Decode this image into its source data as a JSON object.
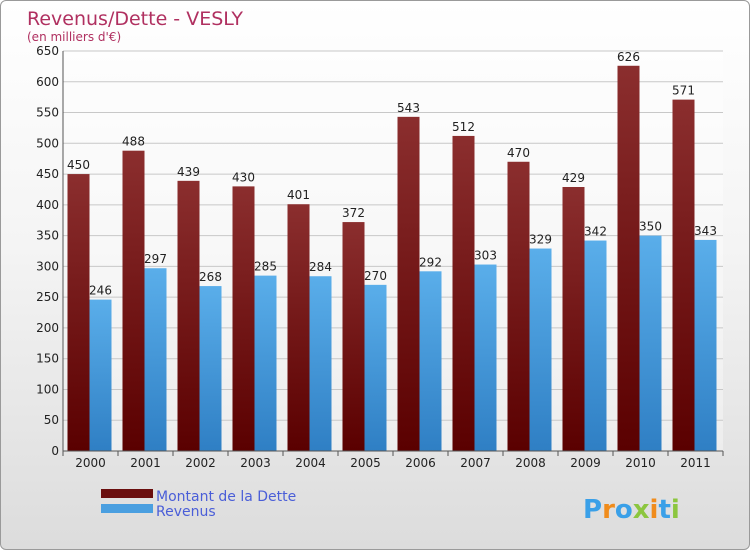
{
  "chart_data": {
    "type": "bar",
    "title": "Revenus/Dette - VESLY",
    "subtitle": "(en milliers d'€)",
    "categories": [
      "2000",
      "2001",
      "2002",
      "2003",
      "2004",
      "2005",
      "2006",
      "2007",
      "2008",
      "2009",
      "2010",
      "2011"
    ],
    "series": [
      {
        "name": "Montant de la Dette",
        "values": [
          450,
          488,
          439,
          430,
          401,
          372,
          543,
          512,
          470,
          429,
          626,
          571
        ]
      },
      {
        "name": "Revenus",
        "values": [
          246,
          297,
          268,
          285,
          284,
          270,
          292,
          303,
          329,
          342,
          350,
          343
        ]
      }
    ],
    "ylim": [
      0,
      650
    ],
    "yticks": [
      0,
      50,
      100,
      150,
      200,
      250,
      300,
      350,
      400,
      450,
      500,
      550,
      600,
      650
    ],
    "grid": true,
    "legend_position": "bottom-left"
  },
  "colors": {
    "dette": "#7b1c1c",
    "revenus": "#4a9fe0",
    "title": "#b03060",
    "legend_text": "#4a5ed8"
  },
  "logo": {
    "text": "Proxiti",
    "letters": [
      "P",
      "r",
      "o",
      "x",
      "i",
      "t",
      "i"
    ],
    "letter_colors": [
      "#3aa0e8",
      "#f08c1c",
      "#3aa0e8",
      "#8cc63f",
      "#f08c1c",
      "#3aa0e8",
      "#8cc63f"
    ]
  }
}
